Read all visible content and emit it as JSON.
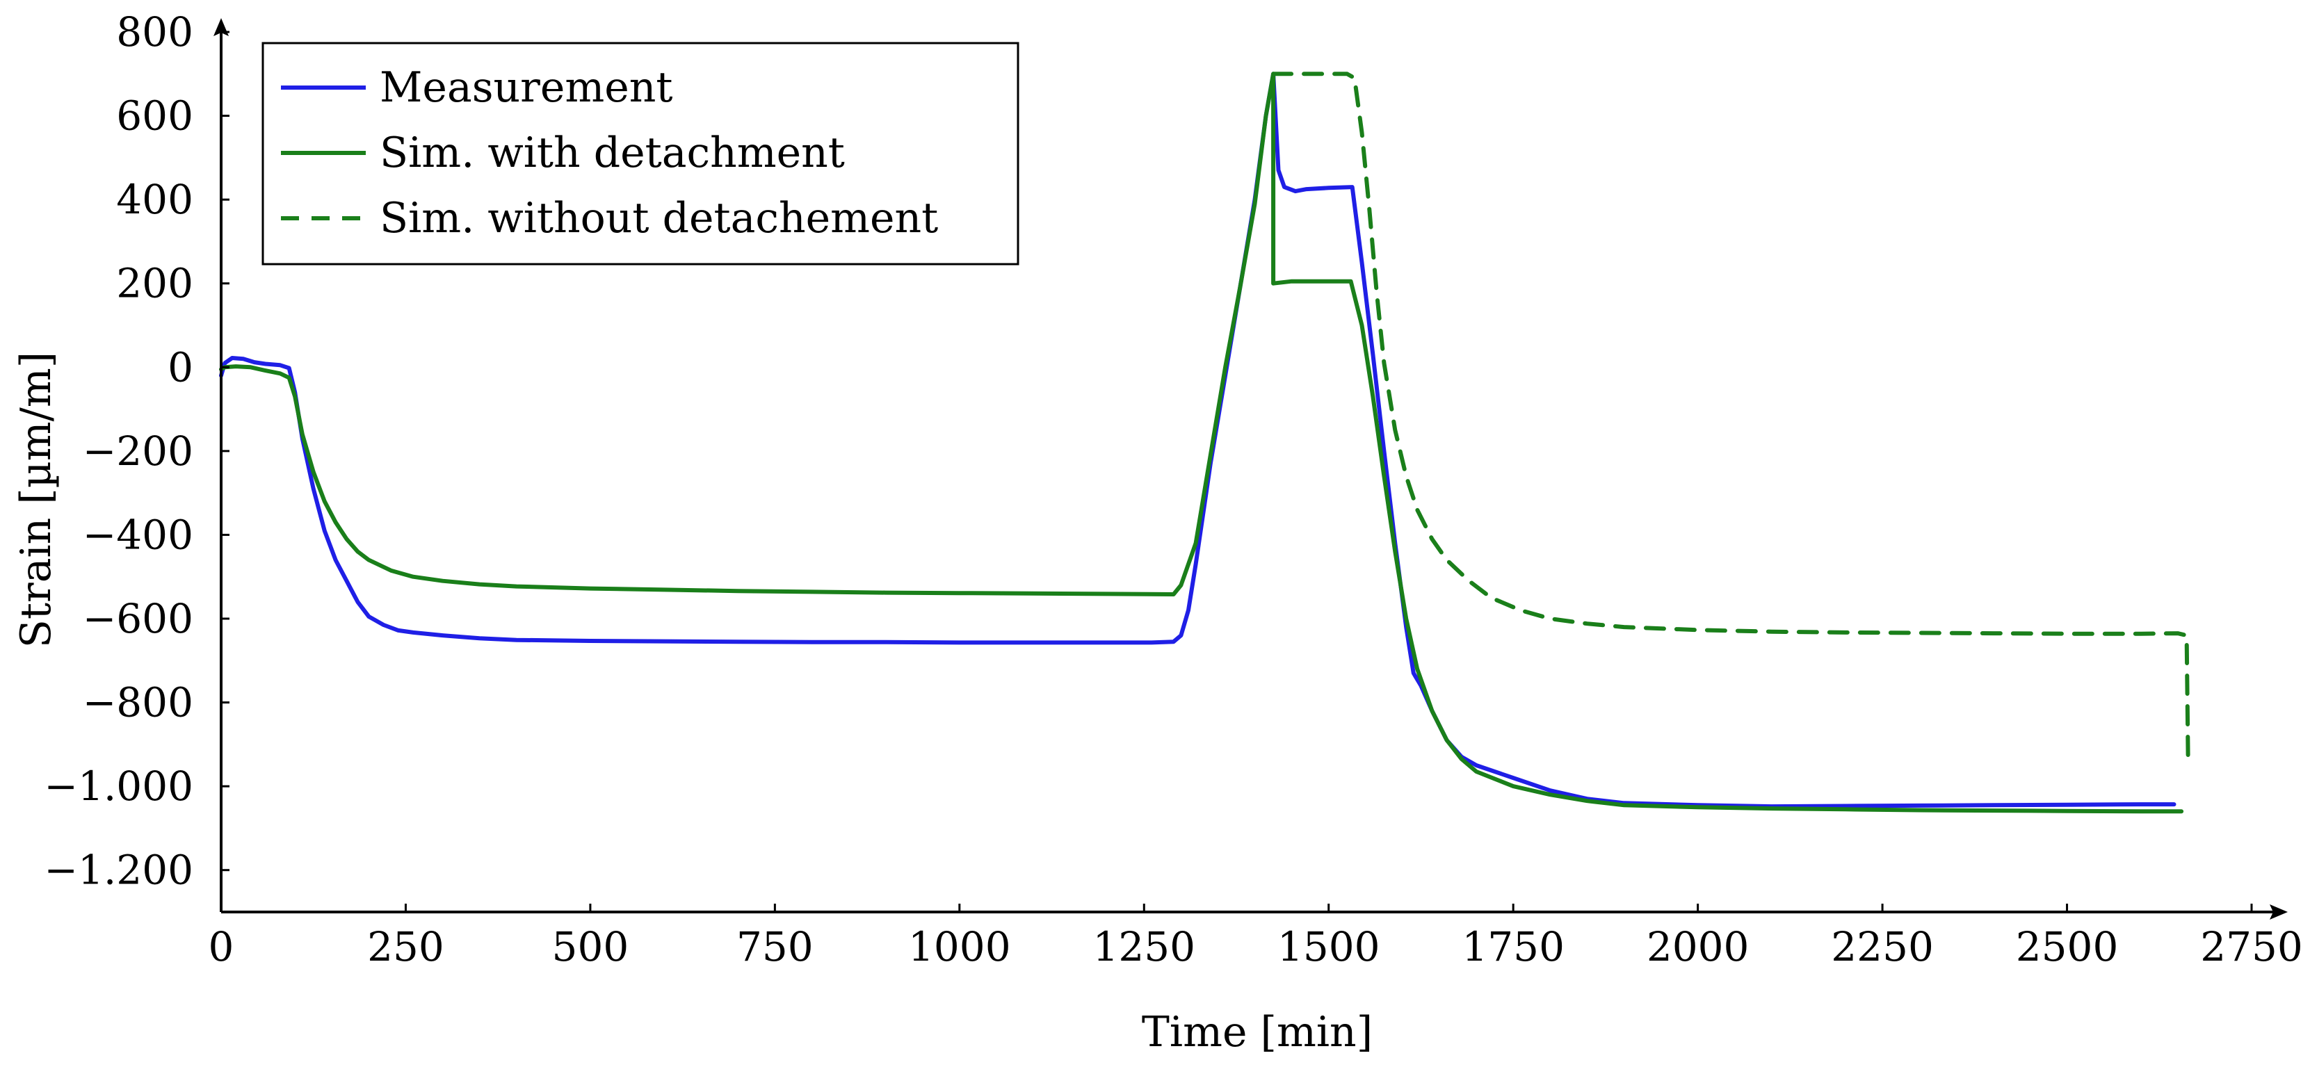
{
  "chart_data": {
    "type": "line",
    "title": "",
    "xlabel": "Time [min]",
    "ylabel": "Strain [µm/m]",
    "xlim": [
      0,
      2750
    ],
    "ylim": [
      -1300,
      800
    ],
    "xticks": [
      {
        "value": 0,
        "label": "0"
      },
      {
        "value": 250,
        "label": "250"
      },
      {
        "value": 500,
        "label": "500"
      },
      {
        "value": 750,
        "label": "750"
      },
      {
        "value": 1000,
        "label": "1000"
      },
      {
        "value": 1250,
        "label": "1250"
      },
      {
        "value": 1500,
        "label": "1500"
      },
      {
        "value": 1750,
        "label": "1750"
      },
      {
        "value": 2000,
        "label": "2000"
      },
      {
        "value": 2250,
        "label": "2250"
      },
      {
        "value": 2500,
        "label": "2500"
      },
      {
        "value": 2750,
        "label": "2750"
      }
    ],
    "yticks": [
      {
        "value": 800,
        "label": "800"
      },
      {
        "value": 600,
        "label": "600"
      },
      {
        "value": 400,
        "label": "400"
      },
      {
        "value": 200,
        "label": "200"
      },
      {
        "value": 0,
        "label": "0"
      },
      {
        "value": -200,
        "label": "−200"
      },
      {
        "value": -400,
        "label": "−400"
      },
      {
        "value": -600,
        "label": "−600"
      },
      {
        "value": -800,
        "label": "−800"
      },
      {
        "value": -1000,
        "label": "−1.000"
      },
      {
        "value": -1200,
        "label": "−1.200"
      }
    ],
    "grid": false,
    "legend_position": "top-left",
    "series": [
      {
        "name": "Measurement",
        "color": "#1f1fe6",
        "dash": "solid",
        "points": [
          [
            0,
            -20
          ],
          [
            5,
            10
          ],
          [
            15,
            22
          ],
          [
            30,
            20
          ],
          [
            45,
            12
          ],
          [
            60,
            8
          ],
          [
            80,
            5
          ],
          [
            92,
            -2
          ],
          [
            100,
            -60
          ],
          [
            110,
            -170
          ],
          [
            125,
            -290
          ],
          [
            140,
            -390
          ],
          [
            155,
            -460
          ],
          [
            170,
            -510
          ],
          [
            185,
            -560
          ],
          [
            200,
            -595
          ],
          [
            220,
            -615
          ],
          [
            240,
            -628
          ],
          [
            260,
            -633
          ],
          [
            300,
            -640
          ],
          [
            350,
            -647
          ],
          [
            400,
            -651
          ],
          [
            500,
            -653
          ],
          [
            600,
            -654
          ],
          [
            700,
            -655
          ],
          [
            800,
            -656
          ],
          [
            900,
            -656
          ],
          [
            1000,
            -657
          ],
          [
            1100,
            -657
          ],
          [
            1200,
            -657
          ],
          [
            1260,
            -657
          ],
          [
            1290,
            -655
          ],
          [
            1300,
            -640
          ],
          [
            1310,
            -580
          ],
          [
            1320,
            -470
          ],
          [
            1340,
            -230
          ],
          [
            1360,
            -20
          ],
          [
            1380,
            190
          ],
          [
            1400,
            400
          ],
          [
            1415,
            600
          ],
          [
            1425,
            700
          ],
          [
            1432,
            470
          ],
          [
            1440,
            430
          ],
          [
            1455,
            420
          ],
          [
            1470,
            425
          ],
          [
            1500,
            428
          ],
          [
            1532,
            430
          ],
          [
            1545,
            250
          ],
          [
            1560,
            30
          ],
          [
            1575,
            -200
          ],
          [
            1590,
            -420
          ],
          [
            1605,
            -620
          ],
          [
            1615,
            -730
          ],
          [
            1625,
            -760
          ],
          [
            1640,
            -820
          ],
          [
            1660,
            -890
          ],
          [
            1680,
            -930
          ],
          [
            1700,
            -950
          ],
          [
            1750,
            -980
          ],
          [
            1800,
            -1010
          ],
          [
            1850,
            -1030
          ],
          [
            1900,
            -1040
          ],
          [
            2000,
            -1045
          ],
          [
            2100,
            -1048
          ],
          [
            2200,
            -1047
          ],
          [
            2300,
            -1046
          ],
          [
            2400,
            -1045
          ],
          [
            2500,
            -1044
          ],
          [
            2600,
            -1043
          ],
          [
            2645,
            -1043
          ]
        ]
      },
      {
        "name": "Sim. with detachment",
        "color": "#1a7f1a",
        "dash": "solid",
        "points": [
          [
            0,
            -5
          ],
          [
            5,
            0
          ],
          [
            20,
            2
          ],
          [
            40,
            0
          ],
          [
            60,
            -8
          ],
          [
            80,
            -15
          ],
          [
            92,
            -25
          ],
          [
            100,
            -70
          ],
          [
            110,
            -160
          ],
          [
            125,
            -250
          ],
          [
            140,
            -320
          ],
          [
            155,
            -370
          ],
          [
            170,
            -410
          ],
          [
            185,
            -440
          ],
          [
            200,
            -460
          ],
          [
            230,
            -485
          ],
          [
            260,
            -500
          ],
          [
            300,
            -510
          ],
          [
            350,
            -518
          ],
          [
            400,
            -523
          ],
          [
            500,
            -528
          ],
          [
            600,
            -531
          ],
          [
            700,
            -534
          ],
          [
            800,
            -536
          ],
          [
            900,
            -538
          ],
          [
            1000,
            -539
          ],
          [
            1100,
            -540
          ],
          [
            1200,
            -541
          ],
          [
            1290,
            -542
          ],
          [
            1300,
            -520
          ],
          [
            1320,
            -420
          ],
          [
            1340,
            -210
          ],
          [
            1360,
            0
          ],
          [
            1380,
            190
          ],
          [
            1400,
            390
          ],
          [
            1415,
            600
          ],
          [
            1425,
            700
          ],
          [
            1425,
            200
          ],
          [
            1450,
            205
          ],
          [
            1500,
            205
          ],
          [
            1530,
            205
          ],
          [
            1545,
            100
          ],
          [
            1560,
            -70
          ],
          [
            1575,
            -260
          ],
          [
            1590,
            -440
          ],
          [
            1605,
            -600
          ],
          [
            1620,
            -720
          ],
          [
            1640,
            -820
          ],
          [
            1660,
            -890
          ],
          [
            1680,
            -935
          ],
          [
            1700,
            -965
          ],
          [
            1750,
            -1000
          ],
          [
            1800,
            -1020
          ],
          [
            1850,
            -1035
          ],
          [
            1900,
            -1045
          ],
          [
            2000,
            -1050
          ],
          [
            2100,
            -1053
          ],
          [
            2200,
            -1055
          ],
          [
            2300,
            -1057
          ],
          [
            2400,
            -1058
          ],
          [
            2500,
            -1059
          ],
          [
            2600,
            -1060
          ],
          [
            2655,
            -1060
          ]
        ]
      },
      {
        "name": "Sim. without detachement",
        "color": "#1a7f1a",
        "dash": "dashed",
        "points": [
          [
            1425,
            700
          ],
          [
            1450,
            700
          ],
          [
            1500,
            700
          ],
          [
            1525,
            700
          ],
          [
            1535,
            690
          ],
          [
            1545,
            560
          ],
          [
            1555,
            380
          ],
          [
            1565,
            180
          ],
          [
            1575,
            10
          ],
          [
            1590,
            -150
          ],
          [
            1605,
            -260
          ],
          [
            1620,
            -340
          ],
          [
            1640,
            -410
          ],
          [
            1660,
            -460
          ],
          [
            1690,
            -510
          ],
          [
            1720,
            -550
          ],
          [
            1760,
            -580
          ],
          [
            1800,
            -600
          ],
          [
            1850,
            -612
          ],
          [
            1900,
            -620
          ],
          [
            2000,
            -627
          ],
          [
            2100,
            -631
          ],
          [
            2200,
            -633
          ],
          [
            2300,
            -634
          ],
          [
            2400,
            -635
          ],
          [
            2500,
            -636
          ],
          [
            2600,
            -636
          ],
          [
            2650,
            -635
          ],
          [
            2662,
            -640
          ],
          [
            2664,
            -940
          ]
        ]
      }
    ]
  }
}
